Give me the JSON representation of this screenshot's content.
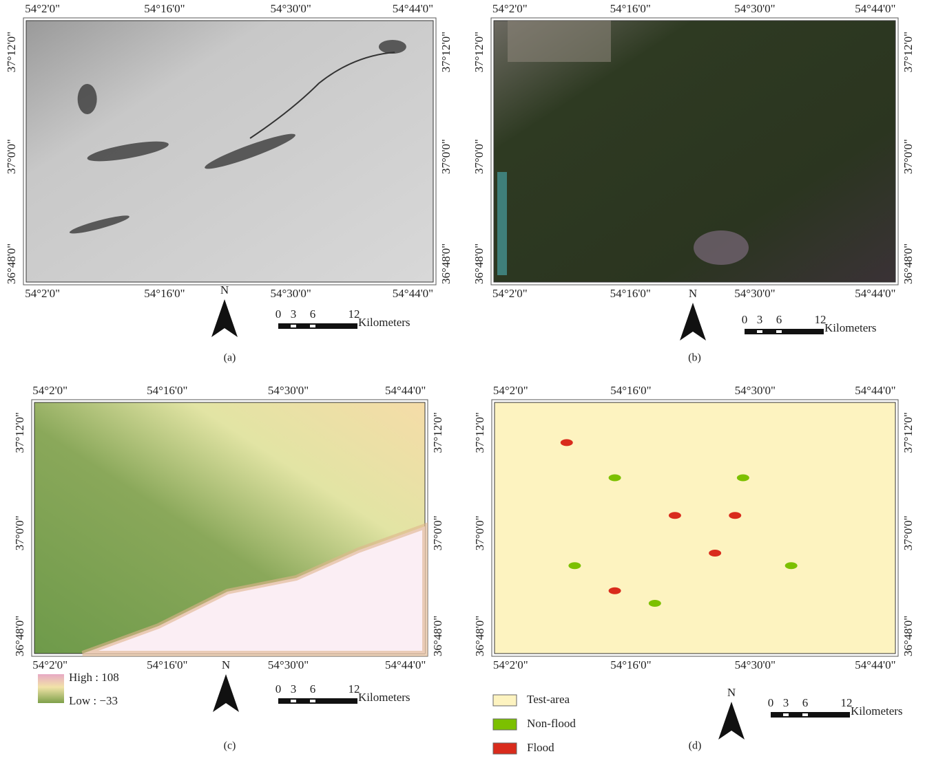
{
  "panels": [
    {
      "caption": "(a)",
      "top_labels": [
        "54°2'0\"",
        "54°16'0\"",
        "54°30'0\"",
        "54°44'0\""
      ],
      "bottom_labels": [
        "54°2'0\"",
        "54°16'0\"",
        "54°30'0\"",
        "54°44'0\""
      ],
      "left_labels": [
        "37°12'0\"",
        "37°0'0\"",
        "36°48'0\""
      ],
      "right_labels": [
        "37°12'0\"",
        "37°0'0\"",
        "36°48'0\""
      ],
      "north": "N",
      "scale_ticks": [
        "0",
        "3",
        "6",
        "12"
      ],
      "scale_unit": "Kilometers"
    },
    {
      "caption": "(b)",
      "top_labels": [
        "54°2'0\"",
        "54°16'0\"",
        "54°30'0\"",
        "54°44'0\""
      ],
      "bottom_labels": [
        "54°2'0\"",
        "54°16'0\"",
        "54°30'0\"",
        "54°44'0\""
      ],
      "left_labels": [
        "37°12'0\"",
        "37°0'0\"",
        "36°48'0\""
      ],
      "right_labels": [
        "37°12'0\"",
        "37°0'0\"",
        "36°48'0\""
      ],
      "north": "N",
      "scale_ticks": [
        "0",
        "3",
        "6",
        "12"
      ],
      "scale_unit": "Kilometers"
    },
    {
      "caption": "(c)",
      "top_labels": [
        "54°2'0\"",
        "54°16'0\"",
        "54°30'0\"",
        "54°44'0\""
      ],
      "bottom_labels": [
        "54°2'0\"",
        "54°16'0\"",
        "54°30'0\"",
        "54°44'0\""
      ],
      "left_labels": [
        "37°12'0\"",
        "37°0'0\"",
        "36°48'0\""
      ],
      "right_labels": [
        "37°12'0\"",
        "37°0'0\"",
        "36°48'0\""
      ],
      "north": "N",
      "scale_ticks": [
        "0",
        "3",
        "6",
        "12"
      ],
      "scale_unit": "Kilometers",
      "legend_gradient": {
        "high": "High : 108",
        "low": "Low : −33"
      }
    },
    {
      "caption": "(d)",
      "top_labels": [
        "54°2'0\"",
        "54°16'0\"",
        "54°30'0\"",
        "54°44'0\""
      ],
      "bottom_labels": [
        "54°2'0\"",
        "54°16'0\"",
        "54°30'0\"",
        "54°44'0\""
      ],
      "left_labels": [
        "37°12'0\"",
        "37°0'0\"",
        "36°48'0\""
      ],
      "right_labels": [
        "37°12'0\"",
        "37°0'0\"",
        "36°48'0\""
      ],
      "north": "N",
      "scale_ticks": [
        "0",
        "3",
        "6",
        "12"
      ],
      "scale_unit": "Kilometers",
      "legend_items": [
        {
          "name": "Test-area",
          "color": "#fdf3c0"
        },
        {
          "name": "Non-flood",
          "color": "#7cc000"
        },
        {
          "name": "Flood",
          "color": "#d92b1c"
        }
      ]
    }
  ]
}
